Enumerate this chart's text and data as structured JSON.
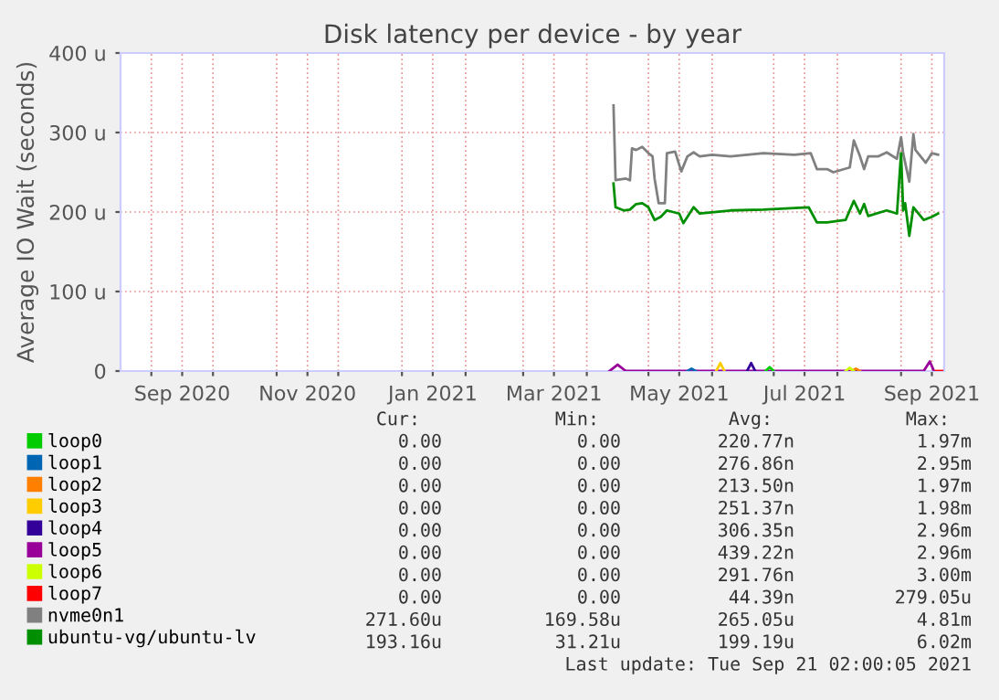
{
  "chart_data": {
    "type": "line",
    "title": "Disk latency per device - by year",
    "ylabel": "Average IO Wait (seconds)",
    "xlim": [
      "2020-08-17",
      "2021-09-22"
    ],
    "xticks": [
      {
        "value": "2020-09-16",
        "label": "Sep 2020"
      },
      {
        "value": "2020-11-16",
        "label": "Nov 2020"
      },
      {
        "value": "2021-01-16",
        "label": "Jan 2021"
      },
      {
        "value": "2021-03-16",
        "label": "Mar 2021"
      },
      {
        "value": "2021-05-16",
        "label": "May 2021"
      },
      {
        "value": "2021-07-16",
        "label": "Jul 2021"
      },
      {
        "value": "2021-09-16",
        "label": "Sep 2021"
      },
      {
        "value": "2020-09-01",
        "label": null
      },
      {
        "value": "2020-10-01",
        "label": null
      },
      {
        "value": "2020-11-01",
        "label": null
      },
      {
        "value": "2020-12-01",
        "label": null
      },
      {
        "value": "2021-01-01",
        "label": null
      },
      {
        "value": "2021-02-01",
        "label": null
      },
      {
        "value": "2021-03-01",
        "label": null
      },
      {
        "value": "2021-04-01",
        "label": null
      },
      {
        "value": "2021-05-01",
        "label": null
      },
      {
        "value": "2021-06-01",
        "label": null
      },
      {
        "value": "2021-07-01",
        "label": null
      },
      {
        "value": "2021-08-01",
        "label": null
      },
      {
        "value": "2021-09-01",
        "label": null
      }
    ],
    "ylim": [
      0,
      400
    ],
    "yticks": [
      0,
      {
        "value": 100,
        "label": "100 u"
      },
      {
        "value": 200,
        "label": "200 u"
      },
      {
        "value": 300,
        "label": "300 u"
      },
      {
        "value": 400,
        "label": "400 u"
      }
    ],
    "grid": true,
    "legend": "bottom",
    "series": [
      {
        "name": "loop0",
        "color": "#00cc00",
        "x": [
          "2021-06-27",
          "2021-06-29",
          "2021-07-01"
        ],
        "values": [
          0,
          5,
          0
        ]
      },
      {
        "name": "loop1",
        "color": "#0066b3",
        "x": [
          "2021-05-20",
          "2021-05-22",
          "2021-05-24"
        ],
        "values": [
          0,
          3,
          0
        ]
      },
      {
        "name": "loop2",
        "color": "#ff8000",
        "x": [
          "2021-08-08",
          "2021-08-10",
          "2021-08-12"
        ],
        "values": [
          0,
          3,
          0
        ]
      },
      {
        "name": "loop3",
        "color": "#ffcc00",
        "x": [
          "2021-06-03",
          "2021-06-05",
          "2021-06-07"
        ],
        "values": [
          0,
          10,
          0
        ]
      },
      {
        "name": "loop4",
        "color": "#330099",
        "x": [
          "2021-06-18",
          "2021-06-20",
          "2021-06-22"
        ],
        "values": [
          0,
          10,
          0
        ]
      },
      {
        "name": "loop5",
        "color": "#990099",
        "x": [
          "2021-04-12",
          "2021-04-16",
          "2021-04-20",
          "2021-07-01",
          "2021-09-12",
          "2021-09-15",
          "2021-09-17"
        ],
        "values": [
          0,
          8,
          0,
          0,
          0,
          12,
          0
        ]
      },
      {
        "name": "loop6",
        "color": "#ccff00",
        "x": [
          "2021-08-05",
          "2021-08-07",
          "2021-08-09"
        ],
        "values": [
          0,
          4,
          0
        ]
      },
      {
        "name": "loop7",
        "color": "#ff0000",
        "x": [
          "2021-09-18",
          "2021-09-21"
        ],
        "values": [
          0,
          0
        ]
      },
      {
        "name": "nvme0n1",
        "color": "#808080",
        "x": [
          "2021-04-14",
          "2021-04-15",
          "2021-04-20",
          "2021-04-22",
          "2021-04-23",
          "2021-04-25",
          "2021-04-28",
          "2021-05-01",
          "2021-05-03",
          "2021-05-04",
          "2021-05-06",
          "2021-05-09",
          "2021-05-10",
          "2021-05-14",
          "2021-05-17",
          "2021-05-20",
          "2021-05-23",
          "2021-05-26",
          "2021-06-01",
          "2021-06-10",
          "2021-06-26",
          "2021-07-11",
          "2021-07-19",
          "2021-07-22",
          "2021-07-27",
          "2021-07-30",
          "2021-08-07",
          "2021-08-09",
          "2021-08-12",
          "2021-08-14",
          "2021-08-16",
          "2021-08-21",
          "2021-08-25",
          "2021-08-30",
          "2021-09-01",
          "2021-09-02",
          "2021-09-05",
          "2021-09-07",
          "2021-09-08",
          "2021-09-13",
          "2021-09-16",
          "2021-09-19"
        ],
        "values": [
          334,
          240,
          242,
          240,
          280,
          278,
          282,
          274,
          270,
          242,
          211,
          211,
          274,
          276,
          251,
          270,
          275,
          270,
          272,
          270,
          274,
          272,
          274,
          254,
          254,
          250,
          256,
          290,
          270,
          254,
          270,
          270,
          275,
          267,
          294,
          274,
          238,
          298,
          278,
          262,
          274,
          272
        ]
      },
      {
        "name": "ubuntu-vg/ubuntu-lv",
        "color": "#008f00",
        "x": [
          "2021-04-14",
          "2021-04-15",
          "2021-04-19",
          "2021-04-22",
          "2021-04-25",
          "2021-04-28",
          "2021-05-01",
          "2021-05-04",
          "2021-05-07",
          "2021-05-10",
          "2021-05-16",
          "2021-05-18",
          "2021-05-23",
          "2021-05-26",
          "2021-06-10",
          "2021-06-26",
          "2021-07-18",
          "2021-07-22",
          "2021-07-27",
          "2021-08-05",
          "2021-08-09",
          "2021-08-12",
          "2021-08-14",
          "2021-08-16",
          "2021-08-25",
          "2021-08-30",
          "2021-09-01",
          "2021-09-02",
          "2021-09-03",
          "2021-09-05",
          "2021-09-07",
          "2021-09-12",
          "2021-09-16",
          "2021-09-19"
        ],
        "values": [
          236,
          206,
          202,
          203,
          210,
          211,
          206,
          190,
          194,
          202,
          198,
          186,
          206,
          198,
          202,
          203,
          206,
          187,
          187,
          190,
          214,
          198,
          210,
          195,
          202,
          198,
          274,
          202,
          211,
          170,
          206,
          190,
          194,
          198
        ]
      }
    ],
    "annotations": [
      "Cur:",
      "Min:",
      "Avg:",
      "Max:",
      "0.00",
      "0.00",
      "220.77n",
      "1.97m",
      "0.00",
      "0.00",
      "276.86n",
      "2.95m",
      "0.00",
      "0.00",
      "213.50n",
      "1.97m",
      "0.00",
      "0.00",
      "251.37n",
      "1.98m",
      "0.00",
      "0.00",
      "306.35n",
      "2.96m",
      "0.00",
      "0.00",
      "439.22n",
      "2.96m",
      "0.00",
      "0.00",
      "291.76n",
      "3.00m",
      "0.00",
      "0.00",
      "44.39n",
      "279.05u",
      "271.60u",
      "169.58u",
      "265.05u",
      "4.81m",
      "193.16u",
      "31.21u",
      "199.19u",
      "6.02m",
      "Last update: Tue Sep 21 02:00:05 2021"
    ]
  }
}
